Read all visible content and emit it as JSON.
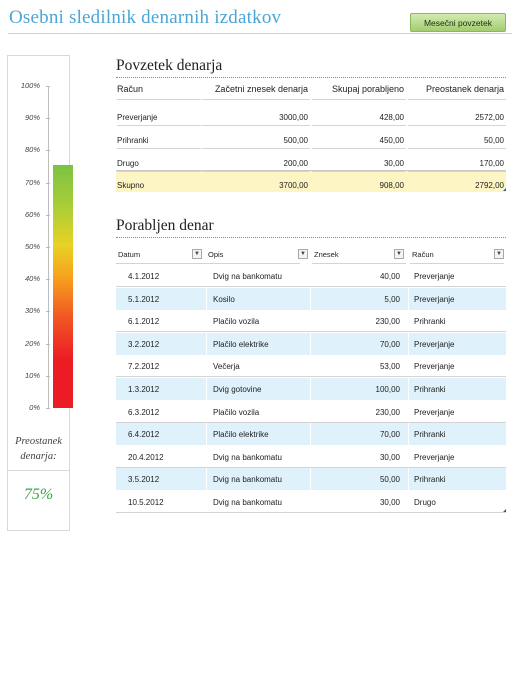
{
  "title": "Osebni sledilnik denarnih izdatkov",
  "button_label": "Mesečni povzetek",
  "gauge": {
    "ticks": [
      "100%",
      "90%",
      "80%",
      "70%",
      "60%",
      "50%",
      "40%",
      "30%",
      "20%",
      "10%",
      "0%"
    ],
    "fill_fraction": 0.755,
    "label": "Preostanek denarja:",
    "value": "75%"
  },
  "summary": {
    "title": "Povzetek denarja",
    "headers": [
      "Račun",
      "Začetni znesek denarja",
      "Skupaj porabljeno",
      "Preostanek denarja"
    ],
    "rows": [
      [
        "Preverjanje",
        "3000,00",
        "428,00",
        "2572,00"
      ],
      [
        "Prihranki",
        "500,00",
        "450,00",
        "50,00"
      ],
      [
        "Drugo",
        "200,00",
        "30,00",
        "170,00"
      ]
    ],
    "total": [
      "Skupno",
      "3700,00",
      "908,00",
      "2792,00"
    ]
  },
  "spent": {
    "title": "Porabljen denar",
    "headers": [
      "Datum",
      "Opis",
      "Znesek",
      "Račun"
    ],
    "rows": [
      [
        "4.1.2012",
        "Dvig na bankomatu",
        "40,00",
        "Preverjanje"
      ],
      [
        "5.1.2012",
        "Kosilo",
        "5,00",
        "Preverjanje"
      ],
      [
        "6.1.2012",
        "Plačilo vozila",
        "230,00",
        "Prihranki"
      ],
      [
        "3.2.2012",
        "Plačilo elektrike",
        "70,00",
        "Preverjanje"
      ],
      [
        "7.2.2012",
        "Večerja",
        "53,00",
        "Preverjanje"
      ],
      [
        "1.3.2012",
        "Dvig gotovine",
        "100,00",
        "Prihranki"
      ],
      [
        "6.3.2012",
        "Plačilo vozila",
        "230,00",
        "Preverjanje"
      ],
      [
        "6.4.2012",
        "Plačilo elektrike",
        "70,00",
        "Prihranki"
      ],
      [
        "20.4.2012",
        "Dvig na bankomatu",
        "30,00",
        "Preverjanje"
      ],
      [
        "3.5.2012",
        "Dvig na bankomatu",
        "50,00",
        "Prihranki"
      ],
      [
        "10.5.2012",
        "Dvig na bankomatu",
        "30,00",
        "Drugo"
      ]
    ]
  },
  "colors": {
    "title": "#4aa6d6",
    "band": "#dff1fb",
    "total_band": "#fdf5c4",
    "gauge_value": "#3aa845"
  }
}
